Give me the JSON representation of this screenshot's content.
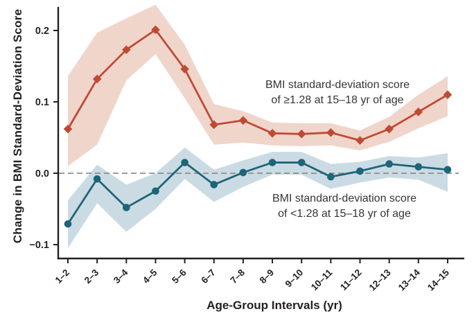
{
  "chart_data": {
    "type": "line",
    "title": "",
    "xlabel": "Age-Group Intervals (yr)",
    "ylabel": "Change in BMI Standard-Deviation Score",
    "categories": [
      "1–2",
      "2–3",
      "3–4",
      "4–5",
      "5–6",
      "6–7",
      "7–8",
      "8–9",
      "9–10",
      "10–11",
      "11–12",
      "12–13",
      "13–14",
      "14–15"
    ],
    "y_ticks": [
      0.2,
      0.1,
      0.0,
      -0.1
    ],
    "ylim": [
      -0.12,
      0.235
    ],
    "grid": false,
    "legend_position": "inline-annotations",
    "zero_reference_line": {
      "y": 0,
      "style": "dashed",
      "color": "#8d8d8d"
    },
    "axis_color": "#231f20",
    "series": [
      {
        "name": "BMI standard-deviation score of ≥1.28 at 15–18 yr of age",
        "marker": "diamond",
        "line_color": "#bf4a33",
        "band_color": "#f0d5cb",
        "values": [
          0.062,
          0.132,
          0.173,
          0.201,
          0.146,
          0.068,
          0.074,
          0.056,
          0.055,
          0.057,
          0.046,
          0.062,
          0.086,
          0.11
        ],
        "ci_upper": [
          0.136,
          0.197,
          0.217,
          0.236,
          0.18,
          0.097,
          0.087,
          0.071,
          0.07,
          0.07,
          0.06,
          0.079,
          0.11,
          0.136
        ],
        "ci_lower": [
          0.01,
          0.04,
          0.13,
          0.167,
          0.105,
          0.04,
          0.043,
          0.039,
          0.038,
          0.039,
          0.032,
          0.044,
          0.063,
          0.08
        ],
        "annotation": [
          "BMI standard-deviation score",
          "of ≥1.28 at 15–18 yr of age"
        ]
      },
      {
        "name": "BMI standard-deviation score of <1.28 at 15–18 yr of age",
        "marker": "circle",
        "line_color": "#1d6577",
        "band_color": "#cbdbe3",
        "values": [
          -0.071,
          -0.008,
          -0.048,
          -0.025,
          0.015,
          -0.016,
          0.001,
          0.015,
          0.015,
          -0.005,
          0.003,
          0.013,
          0.009,
          0.005
        ],
        "ci_upper": [
          -0.038,
          0.012,
          -0.016,
          0.0,
          0.036,
          0.005,
          0.018,
          0.03,
          0.03,
          0.013,
          0.016,
          0.024,
          0.022,
          0.028
        ],
        "ci_lower": [
          -0.105,
          -0.042,
          -0.082,
          -0.05,
          -0.008,
          -0.04,
          -0.019,
          -0.002,
          -0.002,
          -0.022,
          -0.013,
          -0.006,
          -0.009,
          -0.026
        ],
        "annotation": [
          "BMI standard-deviation score",
          "of <1.28 at 15–18 yr of age"
        ]
      }
    ]
  }
}
